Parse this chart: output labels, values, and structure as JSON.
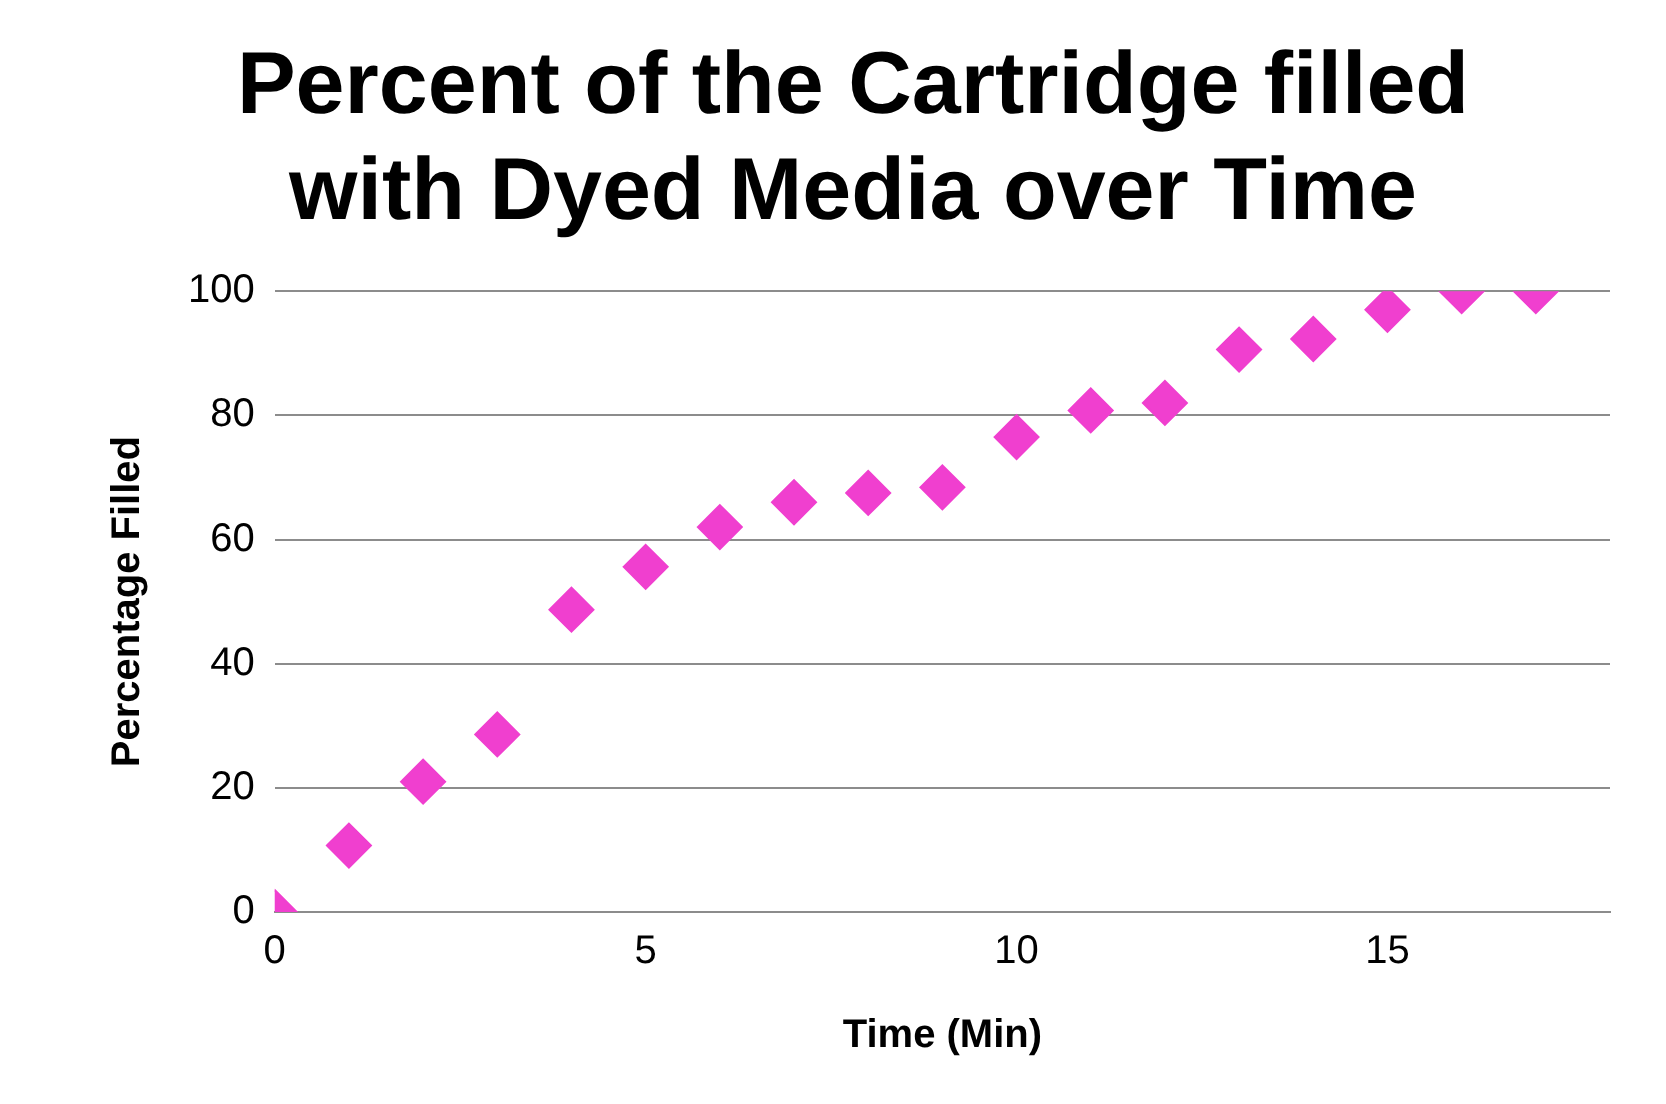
{
  "chart_data": {
    "type": "scatter",
    "title": "Percent of the Cartridge filled with Dyed Media over Time",
    "xlabel": "Time (Min)",
    "ylabel": "Percentage Filled",
    "x": [
      0,
      1,
      2,
      3,
      4,
      5,
      6,
      7,
      8,
      9,
      10,
      11,
      12,
      13,
      14,
      15,
      16,
      17
    ],
    "series": [
      {
        "color": "#f03fcf",
        "values": [
          0,
          10.7,
          21,
          28.6,
          48.7,
          55.6,
          62,
          66,
          67.5,
          68.4,
          76.5,
          80.8,
          82,
          90.6,
          92.3,
          97,
          100,
          100
        ]
      }
    ],
    "xlim": [
      0,
      18
    ],
    "xticks": [
      0,
      5,
      10,
      15
    ],
    "ylim": [
      0,
      100
    ],
    "yticks": [
      0,
      20,
      40,
      60,
      80,
      100
    ],
    "grid": "y",
    "legend": false,
    "marker": "diamond"
  }
}
